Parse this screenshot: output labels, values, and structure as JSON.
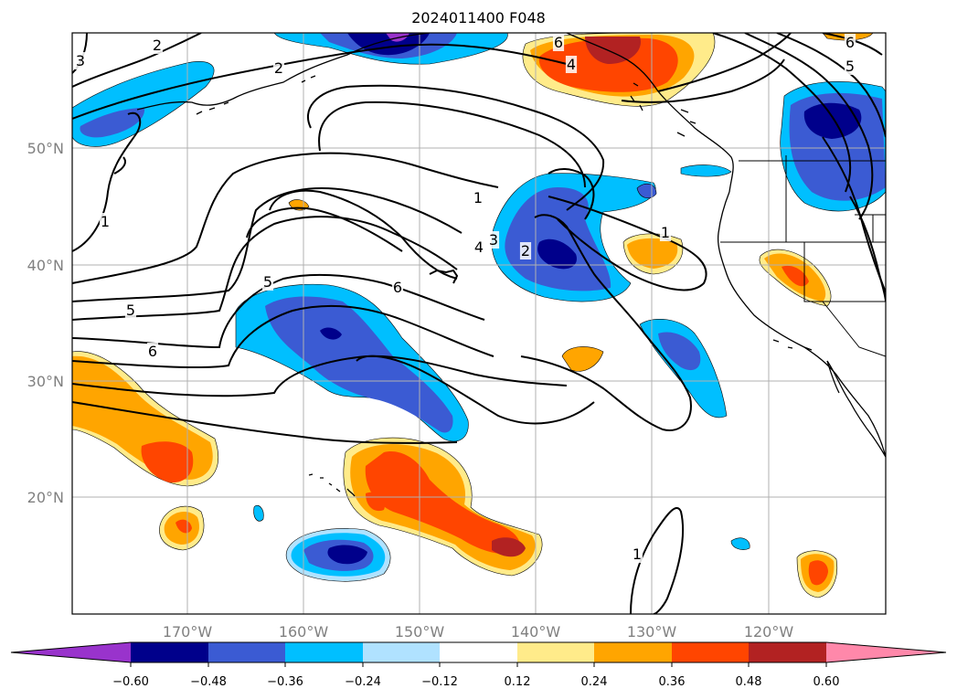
{
  "title": "2024011400 F048",
  "map": {
    "lat_labels": [
      "50°N",
      "40°N",
      "30°N",
      "20°N"
    ],
    "lon_labels": [
      "170°W",
      "160°W",
      "150°W",
      "140°W",
      "130°W",
      "120°W"
    ],
    "contour_labels": [
      "3",
      "2",
      "2",
      "1",
      "5",
      "6",
      "6",
      "1",
      "3",
      "4",
      "2",
      "1",
      "5",
      "6",
      "5",
      "6",
      "4",
      "1"
    ]
  },
  "colorbar": {
    "tick_labels": [
      "−0.60",
      "−0.48",
      "−0.36",
      "−0.24",
      "−0.12",
      "0.12",
      "0.24",
      "0.36",
      "0.48",
      "0.60"
    ],
    "colors": {
      "lt_n060": "#9933cc",
      "n060_n048": "#00008b",
      "n048_n036": "#3b5bd3",
      "n036_n024": "#00bfff",
      "n024_n012": "#b0e2ff",
      "n012_012": "#ffffff",
      "p012_p024": "#ffeb8a",
      "p024_p036": "#ffa500",
      "p036_p048": "#ff4500",
      "p048_p060": "#b22222",
      "gt_p060": "#ff88aa"
    }
  }
}
